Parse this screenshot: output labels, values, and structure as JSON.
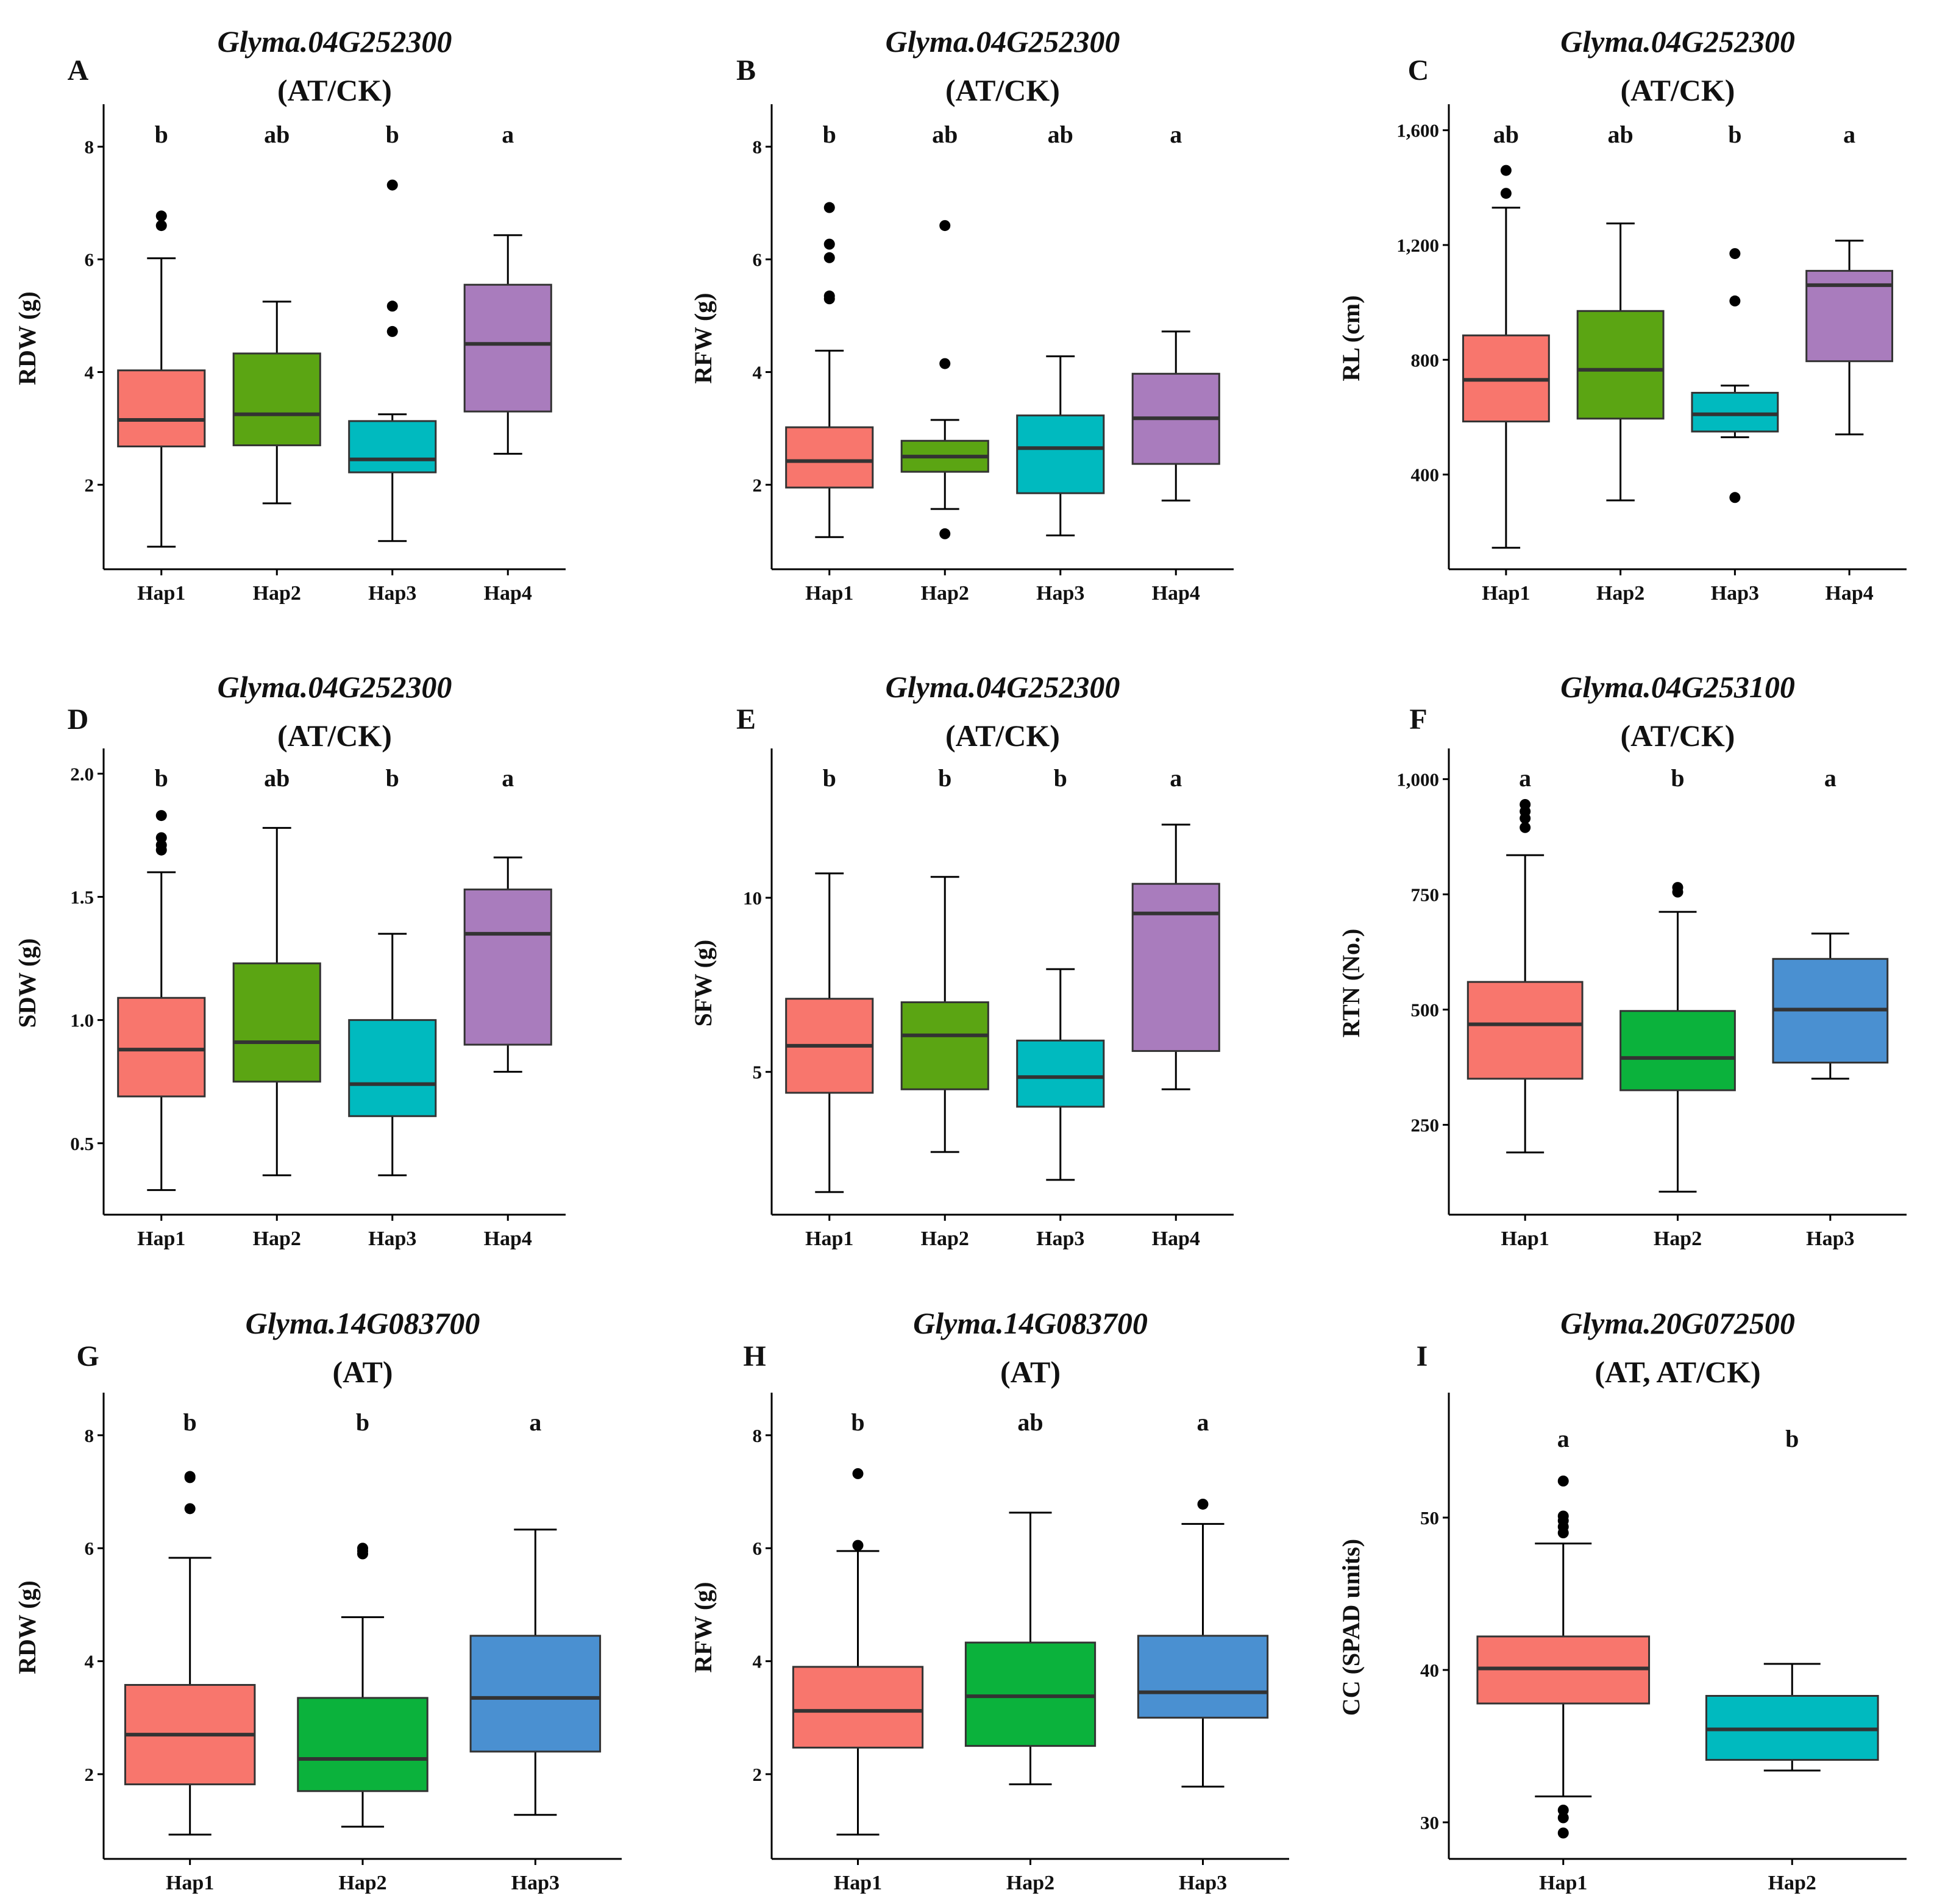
{
  "figure": {
    "colors": {
      "Hap1": "#F8766D",
      "Hap2_olive": "#5BA513",
      "Hap2_green": "#0BB23C",
      "Hap3_cyan": "#00BABF",
      "Hap3_blue": "#4A90D1",
      "Hap4": "#A97CBD",
      "outline": "#333333",
      "point": "#000000"
    }
  },
  "chart_data": [
    {
      "panel": "A",
      "type": "boxplot",
      "title": "Glyma.04G252300",
      "subtitle": "(AT/CK)",
      "ylabel": "RDW (g)",
      "ylim": [
        0.5,
        8.7
      ],
      "yticks": [
        2,
        4,
        6,
        8
      ],
      "ytick_labels": [
        "2",
        "4",
        "6",
        "8"
      ],
      "categories": [
        "Hap1",
        "Hap2",
        "Hap3",
        "Hap4"
      ],
      "letters": [
        "b",
        "ab",
        "b",
        "a"
      ],
      "colors": [
        "#F8766D",
        "#5BA513",
        "#00BABF",
        "#A97CBD"
      ],
      "boxes": [
        {
          "whisker_low": 0.9,
          "q1": 2.68,
          "median": 3.15,
          "q3": 4.03,
          "whisker_high": 6.02,
          "outliers": [
            6.6,
            6.77
          ]
        },
        {
          "whisker_low": 1.67,
          "q1": 2.7,
          "median": 3.25,
          "q3": 4.33,
          "whisker_high": 5.25,
          "outliers": []
        },
        {
          "whisker_low": 1.0,
          "q1": 2.22,
          "median": 2.45,
          "q3": 3.13,
          "whisker_high": 3.25,
          "outliers": [
            4.72,
            5.17,
            7.32
          ]
        },
        {
          "whisker_low": 2.55,
          "q1": 3.3,
          "median": 4.5,
          "q3": 5.55,
          "whisker_high": 6.43,
          "outliers": []
        }
      ]
    },
    {
      "panel": "B",
      "type": "boxplot",
      "title": "Glyma.04G252300",
      "subtitle": "(AT/CK)",
      "ylabel": "RFW (g)",
      "ylim": [
        0.5,
        8.7
      ],
      "yticks": [
        2,
        4,
        6,
        8
      ],
      "ytick_labels": [
        "2",
        "4",
        "6",
        "8"
      ],
      "categories": [
        "Hap1",
        "Hap2",
        "Hap3",
        "Hap4"
      ],
      "letters": [
        "b",
        "ab",
        "ab",
        "a"
      ],
      "colors": [
        "#F8766D",
        "#5BA513",
        "#00BABF",
        "#A97CBD"
      ],
      "boxes": [
        {
          "whisker_low": 1.07,
          "q1": 1.95,
          "median": 2.42,
          "q3": 3.02,
          "whisker_high": 4.38,
          "outliers": [
            5.3,
            5.35,
            6.03,
            6.27,
            6.92
          ]
        },
        {
          "whisker_low": 1.57,
          "q1": 2.23,
          "median": 2.5,
          "q3": 2.78,
          "whisker_high": 3.15,
          "outliers": [
            1.13,
            4.15,
            6.6
          ]
        },
        {
          "whisker_low": 1.1,
          "q1": 1.85,
          "median": 2.65,
          "q3": 3.23,
          "whisker_high": 4.28,
          "outliers": []
        },
        {
          "whisker_low": 1.72,
          "q1": 2.37,
          "median": 3.18,
          "q3": 3.97,
          "whisker_high": 4.72,
          "outliers": []
        }
      ]
    },
    {
      "panel": "C",
      "type": "boxplot",
      "title": "Glyma.04G252300",
      "subtitle": "(AT/CK)",
      "ylabel": "RL (cm)",
      "ylim": [
        70,
        1680
      ],
      "yticks": [
        400,
        800,
        1200,
        1600
      ],
      "ytick_labels": [
        "400",
        "800",
        "1,200",
        "1,600"
      ],
      "categories": [
        "Hap1",
        "Hap2",
        "Hap3",
        "Hap4"
      ],
      "letters": [
        "ab",
        "ab",
        "b",
        "a"
      ],
      "colors": [
        "#F8766D",
        "#5BA513",
        "#00BABF",
        "#A97CBD"
      ],
      "boxes": [
        {
          "whisker_low": 145,
          "q1": 585,
          "median": 730,
          "q3": 885,
          "whisker_high": 1330,
          "outliers": [
            1380,
            1460
          ]
        },
        {
          "whisker_low": 310,
          "q1": 595,
          "median": 765,
          "q3": 970,
          "whisker_high": 1275,
          "outliers": []
        },
        {
          "whisker_low": 530,
          "q1": 550,
          "median": 610,
          "q3": 685,
          "whisker_high": 710,
          "outliers": [
            320,
            1005,
            1170
          ]
        },
        {
          "whisker_low": 540,
          "q1": 795,
          "median": 1060,
          "q3": 1110,
          "whisker_high": 1215,
          "outliers": []
        }
      ]
    },
    {
      "panel": "D",
      "type": "boxplot",
      "title": "Glyma.04G252300",
      "subtitle": "(AT/CK)",
      "ylabel": "SDW (g)",
      "ylim": [
        0.21,
        2.09
      ],
      "yticks": [
        0.5,
        1.0,
        1.5,
        2.0
      ],
      "ytick_labels": [
        "0.5",
        "1.0",
        "1.5",
        "2.0"
      ],
      "categories": [
        "Hap1",
        "Hap2",
        "Hap3",
        "Hap4"
      ],
      "letters": [
        "b",
        "ab",
        "b",
        "a"
      ],
      "colors": [
        "#F8766D",
        "#5BA513",
        "#00BABF",
        "#A97CBD"
      ],
      "boxes": [
        {
          "whisker_low": 0.31,
          "q1": 0.69,
          "median": 0.88,
          "q3": 1.09,
          "whisker_high": 1.6,
          "outliers": [
            1.69,
            1.71,
            1.74,
            1.83
          ]
        },
        {
          "whisker_low": 0.37,
          "q1": 0.75,
          "median": 0.91,
          "q3": 1.23,
          "whisker_high": 1.78,
          "outliers": []
        },
        {
          "whisker_low": 0.37,
          "q1": 0.61,
          "median": 0.74,
          "q3": 1.0,
          "whisker_high": 1.35,
          "outliers": []
        },
        {
          "whisker_low": 0.79,
          "q1": 0.9,
          "median": 1.35,
          "q3": 1.53,
          "whisker_high": 1.66,
          "outliers": []
        }
      ]
    },
    {
      "panel": "E",
      "type": "boxplot",
      "title": "Glyma.04G252300",
      "subtitle": "(AT/CK)",
      "ylabel": "SFW (g)",
      "ylim": [
        0.9,
        14.2
      ],
      "yticks": [
        5,
        10
      ],
      "ytick_labels": [
        "5",
        "10"
      ],
      "categories": [
        "Hap1",
        "Hap2",
        "Hap3",
        "Hap4"
      ],
      "letters": [
        "b",
        "b",
        "b",
        "a"
      ],
      "colors": [
        "#F8766D",
        "#5BA513",
        "#00BABF",
        "#A97CBD"
      ],
      "boxes": [
        {
          "whisker_low": 1.55,
          "q1": 4.4,
          "median": 5.75,
          "q3": 7.1,
          "whisker_high": 10.7,
          "outliers": []
        },
        {
          "whisker_low": 2.7,
          "q1": 4.5,
          "median": 6.05,
          "q3": 7.0,
          "whisker_high": 10.6,
          "outliers": []
        },
        {
          "whisker_low": 1.9,
          "q1": 4.0,
          "median": 4.85,
          "q3": 5.9,
          "whisker_high": 7.95,
          "outliers": []
        },
        {
          "whisker_low": 4.5,
          "q1": 5.6,
          "median": 9.55,
          "q3": 10.4,
          "whisker_high": 12.1,
          "outliers": []
        }
      ]
    },
    {
      "panel": "F",
      "type": "boxplot",
      "title": "Glyma.04G253100",
      "subtitle": "(AT/CK)",
      "ylabel": "RTN (No.)",
      "ylim": [
        55,
        1060
      ],
      "yticks": [
        250,
        500,
        750,
        1000
      ],
      "ytick_labels": [
        "250",
        "500",
        "750",
        "1,000"
      ],
      "categories": [
        "Hap1",
        "Hap2",
        "Hap3"
      ],
      "letters": [
        "a",
        "b",
        "a"
      ],
      "colors": [
        "#F8766D",
        "#0BB23C",
        "#4A90D1"
      ],
      "boxes": [
        {
          "whisker_low": 190,
          "q1": 350,
          "median": 468,
          "q3": 560,
          "whisker_high": 835,
          "outliers": [
            895,
            915,
            930,
            945
          ]
        },
        {
          "whisker_low": 105,
          "q1": 325,
          "median": 395,
          "q3": 497,
          "whisker_high": 712,
          "outliers": [
            755,
            765
          ]
        },
        {
          "whisker_low": 350,
          "q1": 385,
          "median": 500,
          "q3": 610,
          "whisker_high": 665,
          "outliers": []
        }
      ]
    },
    {
      "panel": "G",
      "type": "boxplot",
      "title": "Glyma.14G083700",
      "subtitle": "(AT)",
      "ylabel": "RDW (g)",
      "ylim": [
        0.5,
        8.7
      ],
      "yticks": [
        2,
        4,
        6,
        8
      ],
      "ytick_labels": [
        "2",
        "4",
        "6",
        "8"
      ],
      "categories": [
        "Hap1",
        "Hap2",
        "Hap3"
      ],
      "letters": [
        "b",
        "b",
        "a"
      ],
      "colors": [
        "#F8766D",
        "#0BB23C",
        "#4A90D1"
      ],
      "boxes": [
        {
          "whisker_low": 0.93,
          "q1": 1.82,
          "median": 2.7,
          "q3": 3.58,
          "whisker_high": 5.83,
          "outliers": [
            6.7,
            7.25,
            7.27
          ]
        },
        {
          "whisker_low": 1.07,
          "q1": 1.7,
          "median": 2.27,
          "q3": 3.35,
          "whisker_high": 4.78,
          "outliers": [
            5.9,
            5.95,
            6.0
          ]
        },
        {
          "whisker_low": 1.28,
          "q1": 2.4,
          "median": 3.35,
          "q3": 4.45,
          "whisker_high": 6.33,
          "outliers": []
        }
      ]
    },
    {
      "panel": "H",
      "type": "boxplot",
      "title": "Glyma.14G083700",
      "subtitle": "(AT)",
      "ylabel": "RFW (g)",
      "ylim": [
        0.5,
        8.7
      ],
      "yticks": [
        2,
        4,
        6,
        8
      ],
      "ytick_labels": [
        "2",
        "4",
        "6",
        "8"
      ],
      "categories": [
        "Hap1",
        "Hap2",
        "Hap3"
      ],
      "letters": [
        "b",
        "ab",
        "a"
      ],
      "colors": [
        "#F8766D",
        "#0BB23C",
        "#4A90D1"
      ],
      "boxes": [
        {
          "whisker_low": 0.93,
          "q1": 2.47,
          "median": 3.12,
          "q3": 3.9,
          "whisker_high": 5.95,
          "outliers": [
            6.05,
            7.32
          ]
        },
        {
          "whisker_low": 1.82,
          "q1": 2.5,
          "median": 3.38,
          "q3": 4.33,
          "whisker_high": 6.63,
          "outliers": []
        },
        {
          "whisker_low": 1.78,
          "q1": 3.0,
          "median": 3.45,
          "q3": 4.45,
          "whisker_high": 6.43,
          "outliers": [
            6.78
          ]
        }
      ]
    },
    {
      "panel": "I",
      "type": "boxplot",
      "title": "Glyma.20G072500",
      "subtitle": "(AT, AT/CK)",
      "ylabel": "CC (SPAD units)",
      "ylim": [
        27.6,
        58.0
      ],
      "yticks": [
        30,
        40,
        50
      ],
      "ytick_labels": [
        "30",
        "40",
        "50"
      ],
      "categories": [
        "Hap1",
        "Hap2"
      ],
      "letters": [
        "a",
        "b"
      ],
      "colors": [
        "#F8766D",
        "#00BABF"
      ],
      "boxes": [
        {
          "whisker_low": 31.7,
          "q1": 37.8,
          "median": 40.1,
          "q3": 42.2,
          "whisker_high": 48.3,
          "outliers": [
            29.3,
            30.3,
            30.8,
            49.0,
            49.4,
            49.8,
            50.1,
            52.4
          ]
        },
        {
          "whisker_low": 33.4,
          "q1": 34.1,
          "median": 36.1,
          "q3": 38.3,
          "whisker_high": 40.4,
          "outliers": []
        }
      ]
    }
  ]
}
